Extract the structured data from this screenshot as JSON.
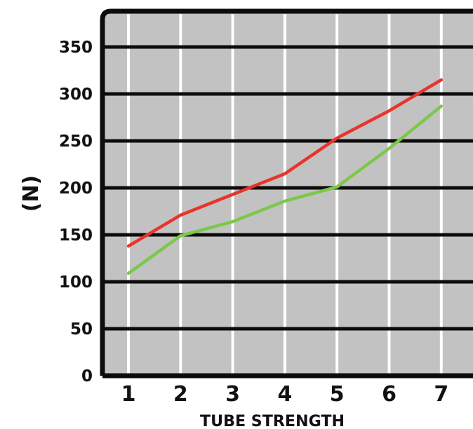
{
  "chart_data": {
    "type": "line",
    "categories": [
      1,
      2,
      3,
      4,
      5,
      6,
      7
    ],
    "series": [
      {
        "color": "#e8342c",
        "values": [
          138,
          171,
          193,
          215,
          253,
          282,
          315
        ]
      },
      {
        "color": "#7cc84a",
        "values": [
          109,
          149,
          164,
          186,
          201,
          242,
          287
        ]
      }
    ],
    "xlabel": "TUBE STRENGTH",
    "ylabel": "(N)",
    "ylim": [
      0,
      390
    ],
    "yticks": [
      0,
      50,
      100,
      150,
      200,
      250,
      300,
      350
    ],
    "grid": true,
    "colors": {
      "plot_background": "#c2c2c2",
      "horizontal_grid": "#0c0c0c",
      "vertical_grid": "#ffffff",
      "frame": "#0c0c0c"
    }
  }
}
